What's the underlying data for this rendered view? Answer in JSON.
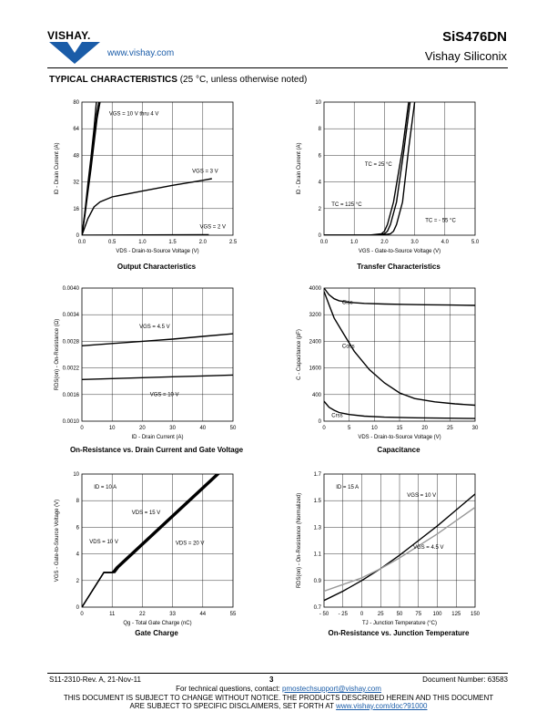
{
  "header": {
    "brand": "VISHAY.",
    "website": "www.vishay.com",
    "part_number": "SiS476DN",
    "company": "Vishay Siliconix"
  },
  "section": {
    "title": "TYPICAL CHARACTERISTICS",
    "condition": "(25 °C, unless otherwise noted)"
  },
  "captions": {
    "c1": "Output Characteristics",
    "c2": "Transfer Characteristics",
    "c3": "On-Resistance vs. Drain Current and Gate Voltage",
    "c4": "Capacitance",
    "c5": "Gate Charge",
    "c6": "On-Resistance vs. Junction Temperature"
  },
  "chart_data": [
    {
      "id": "output",
      "type": "line",
      "xlabel": "VDS - Drain-to-Source Voltage (V)",
      "ylabel": "ID - Drain Current (A)",
      "xlim": [
        0,
        2.5
      ],
      "ylim": [
        0,
        80
      ],
      "xticks": [
        "0.0",
        "0.5",
        "1.0",
        "1.5",
        "2.0",
        "2.5"
      ],
      "yticks": [
        "0",
        "16",
        "32",
        "48",
        "64",
        "80"
      ],
      "annotations": [
        "VGS = 10 V thru 4 V",
        "VGS = 3 V",
        "VGS = 2 V"
      ],
      "series": [
        {
          "x": [
            0,
            0.05,
            0.1,
            0.15,
            0.2,
            0.25,
            0.3
          ],
          "y": [
            0,
            12,
            26,
            40,
            55,
            70,
            80
          ]
        },
        {
          "x": [
            0,
            0.05,
            0.1,
            0.15,
            0.2,
            0.25,
            0.28
          ],
          "y": [
            0,
            13,
            28,
            43,
            59,
            74,
            80
          ]
        },
        {
          "x": [
            0,
            0.05,
            0.1,
            0.15,
            0.2,
            0.24
          ],
          "y": [
            0,
            14,
            31,
            47,
            64,
            80
          ]
        },
        {
          "x": [
            0,
            0.1,
            0.2,
            0.3,
            0.5,
            1.0,
            1.5,
            2.0,
            2.15
          ],
          "y": [
            0,
            10,
            17,
            20,
            23,
            26.5,
            30,
            33,
            34
          ]
        },
        {
          "x": [
            0,
            2.1
          ],
          "y": [
            0,
            0.3
          ]
        }
      ]
    },
    {
      "id": "transfer",
      "type": "line",
      "xlabel": "VGS - Gate-to-Source Voltage (V)",
      "ylabel": "ID - Drain Current (A)",
      "xlim": [
        0,
        5.0
      ],
      "ylim": [
        0,
        10
      ],
      "xticks": [
        "0.0",
        "1.0",
        "2.0",
        "3.0",
        "4.0",
        "5.0"
      ],
      "yticks": [
        "0",
        "2",
        "4",
        "6",
        "8",
        "10"
      ],
      "annotations": [
        "TC = 25 °C",
        "TC = 125 °C",
        "TC = - 55 °C"
      ],
      "series": [
        {
          "name": "TC = 125 °C",
          "x": [
            0,
            1.5,
            1.9,
            2.0,
            2.1,
            2.3,
            2.6,
            2.8
          ],
          "y": [
            0,
            0,
            0.1,
            0.3,
            0.8,
            2.5,
            6.5,
            10
          ]
        },
        {
          "name": "TC = 25 °C",
          "x": [
            0,
            1.7,
            2.0,
            2.1,
            2.2,
            2.4,
            2.65,
            2.85
          ],
          "y": [
            0,
            0,
            0.1,
            0.3,
            0.8,
            2.5,
            6.5,
            10
          ]
        },
        {
          "name": "TC = - 55 °C",
          "x": [
            0,
            1.9,
            2.2,
            2.3,
            2.4,
            2.6,
            2.8,
            3.0
          ],
          "y": [
            0,
            0,
            0.1,
            0.3,
            0.8,
            2.5,
            6.5,
            10
          ]
        }
      ]
    },
    {
      "id": "rdson_id",
      "type": "line",
      "xlabel": "ID - Drain Current (A)",
      "ylabel": "RDS(on) - On-Resistance (Ω)",
      "xlim": [
        0,
        50
      ],
      "ylim": [
        0.001,
        0.004
      ],
      "xticks": [
        "0",
        "10",
        "20",
        "30",
        "40",
        "50"
      ],
      "yticks": [
        "0.0010",
        "0.0016",
        "0.0022",
        "0.0028",
        "0.0034",
        "0.0040"
      ],
      "annotations": [
        "VGS = 4.5 V",
        "VGS = 10 V"
      ],
      "series": [
        {
          "name": "VGS = 4.5 V",
          "x": [
            0,
            10,
            20,
            30,
            40,
            50
          ],
          "y": [
            0.0027,
            0.00275,
            0.0028,
            0.00285,
            0.00291,
            0.00297
          ]
        },
        {
          "name": "VGS = 10 V",
          "x": [
            0,
            10,
            20,
            30,
            40,
            50
          ],
          "y": [
            0.00194,
            0.00196,
            0.00198,
            0.002,
            0.00202,
            0.00204
          ]
        }
      ]
    },
    {
      "id": "capacitance",
      "type": "line",
      "xlabel": "VDS - Drain-to-Source Voltage (V)",
      "ylabel": "C - Capacitance (pF)",
      "xlim": [
        0,
        30
      ],
      "ylim": [
        0,
        4000
      ],
      "xticks": [
        "0",
        "5",
        "10",
        "15",
        "20",
        "25",
        "30"
      ],
      "yticks": [
        "0",
        "400",
        "1600",
        "2400",
        "3200",
        "4000"
      ],
      "annotations": [
        "Ciss",
        "Coss",
        "Crss"
      ],
      "series": [
        {
          "name": "Ciss",
          "x": [
            0,
            1,
            2,
            3,
            5,
            8,
            12,
            16,
            20,
            25,
            30
          ],
          "y": [
            4000,
            3800,
            3680,
            3620,
            3570,
            3540,
            3520,
            3510,
            3500,
            3490,
            3480
          ]
        },
        {
          "name": "Coss",
          "x": [
            0,
            1,
            2,
            4,
            6,
            9,
            12,
            15,
            18,
            22,
            26,
            30
          ],
          "y": [
            3900,
            3500,
            3100,
            2600,
            2100,
            1550,
            1150,
            850,
            680,
            580,
            520,
            480
          ]
        },
        {
          "name": "Crss",
          "x": [
            0,
            1,
            2,
            3,
            5,
            8,
            12,
            18,
            24,
            30
          ],
          "y": [
            600,
            420,
            330,
            260,
            200,
            150,
            120,
            100,
            90,
            80
          ]
        }
      ]
    },
    {
      "id": "gate_charge",
      "type": "line",
      "xlabel": "Qg - Total Gate Charge (nC)",
      "ylabel": "VGS - Gate-to-Source Voltage (V)",
      "xlim": [
        0,
        55
      ],
      "ylim": [
        0,
        10
      ],
      "xticks": [
        "0",
        "11",
        "22",
        "33",
        "44",
        "55"
      ],
      "yticks": [
        "0",
        "2",
        "4",
        "6",
        "8",
        "10"
      ],
      "annotations": [
        "ID = 10 A",
        "VDS = 15 V",
        "VDS = 10 V",
        "VDS = 20 V"
      ],
      "series": [
        {
          "name": "VDS = 10 V",
          "x": [
            0,
            8,
            11,
            12.5,
            50
          ],
          "y": [
            0,
            2.6,
            2.6,
            3.0,
            10.2
          ]
        },
        {
          "name": "VDS = 15 V",
          "x": [
            0,
            8,
            11.5,
            13,
            50.5
          ],
          "y": [
            0,
            2.6,
            2.6,
            3.0,
            10.2
          ]
        },
        {
          "name": "VDS = 20 V",
          "x": [
            0,
            8,
            12,
            13.5,
            51
          ],
          "y": [
            0,
            2.6,
            2.6,
            3.0,
            10.2
          ]
        }
      ]
    },
    {
      "id": "rdson_tj",
      "type": "line",
      "xlabel": "TJ - Junction Temperature (°C)",
      "ylabel": "RDS(on) - On-Resistance (Normalized)",
      "xlim": [
        -50,
        150
      ],
      "ylim": [
        0.7,
        1.7
      ],
      "xticks": [
        "- 50",
        "- 25",
        "0",
        "25",
        "50",
        "75",
        "100",
        "125",
        "150"
      ],
      "yticks": [
        "0.7",
        "0.9",
        "1.1",
        "1.3",
        "1.5",
        "1.7"
      ],
      "annotations": [
        "ID = 15 A",
        "VGS = 10 V",
        "VGS = 4.5 V"
      ],
      "series": [
        {
          "name": "VGS = 10 V",
          "x": [
            -50,
            -25,
            0,
            25,
            50,
            75,
            100,
            125,
            150
          ],
          "y": [
            0.75,
            0.82,
            0.9,
            0.99,
            1.09,
            1.2,
            1.31,
            1.43,
            1.55
          ]
        },
        {
          "name": "VGS = 4.5 V",
          "x": [
            -50,
            -25,
            0,
            25,
            50,
            75,
            100,
            125,
            150
          ],
          "y": [
            0.82,
            0.87,
            0.92,
            0.99,
            1.07,
            1.16,
            1.25,
            1.35,
            1.45
          ]
        }
      ]
    }
  ],
  "footer": {
    "doc_rev": "S11-2310-Rev. A, 21-Nov-11",
    "page": "3",
    "doc_number": "Document Number: 63583",
    "contact_prefix": "For technical questions, contact: ",
    "contact_email": "pmostechsupport@vishay.com",
    "notice1": "THIS DOCUMENT IS SUBJECT TO CHANGE WITHOUT NOTICE. THE PRODUCTS DESCRIBED HEREIN AND THIS DOCUMENT",
    "notice2_prefix": "ARE SUBJECT TO SPECIFIC DISCLAIMERS, SET FORTH AT ",
    "notice2_link": "www.vishay.com/doc?91000"
  }
}
